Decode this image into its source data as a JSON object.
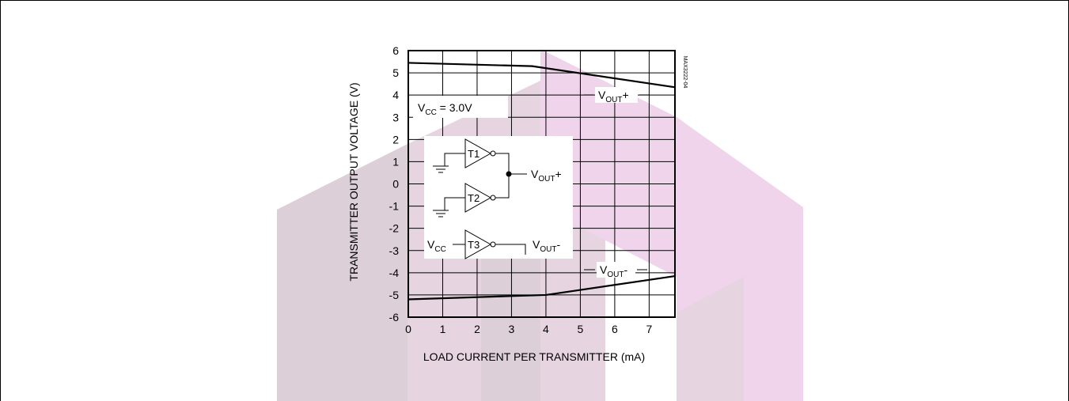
{
  "chart_data": {
    "type": "line",
    "title": "",
    "xlabel": "LOAD CURRENT PER TRANSMITTER (mA)",
    "ylabel": "TRANSMITTER OUTPUT VOLTAGE (V)",
    "xlim": [
      0,
      7.75
    ],
    "ylim": [
      -6,
      6
    ],
    "x_ticks": [
      0,
      1,
      2,
      3,
      4,
      5,
      6,
      7
    ],
    "y_ticks": [
      6,
      5,
      4,
      3,
      2,
      1,
      0,
      -1,
      -2,
      -3,
      -4,
      -5,
      -6
    ],
    "grid": true,
    "series": [
      {
        "name": "VOUT+",
        "x": [
          0,
          3.6,
          7.75
        ],
        "y": [
          5.45,
          5.3,
          4.35
        ]
      },
      {
        "name": "VOUT-",
        "x": [
          0,
          4.0,
          7.75
        ],
        "y": [
          -5.2,
          -5.0,
          -4.15
        ]
      }
    ],
    "annotations": {
      "vcc_base": "V",
      "vcc_sub": "CC",
      "vcc_rest": " = 3.0V",
      "vout_base": "V",
      "vout_sub": "OUT",
      "plus": "+",
      "minus": "-",
      "t1": "T1",
      "t2": "T2",
      "t3": "T3",
      "chart_code": "MAX3222-04"
    }
  },
  "colors": {
    "watermark_pink": "#f0d4ec",
    "watermark_gray": "#dccfd7",
    "line": "#000000"
  }
}
